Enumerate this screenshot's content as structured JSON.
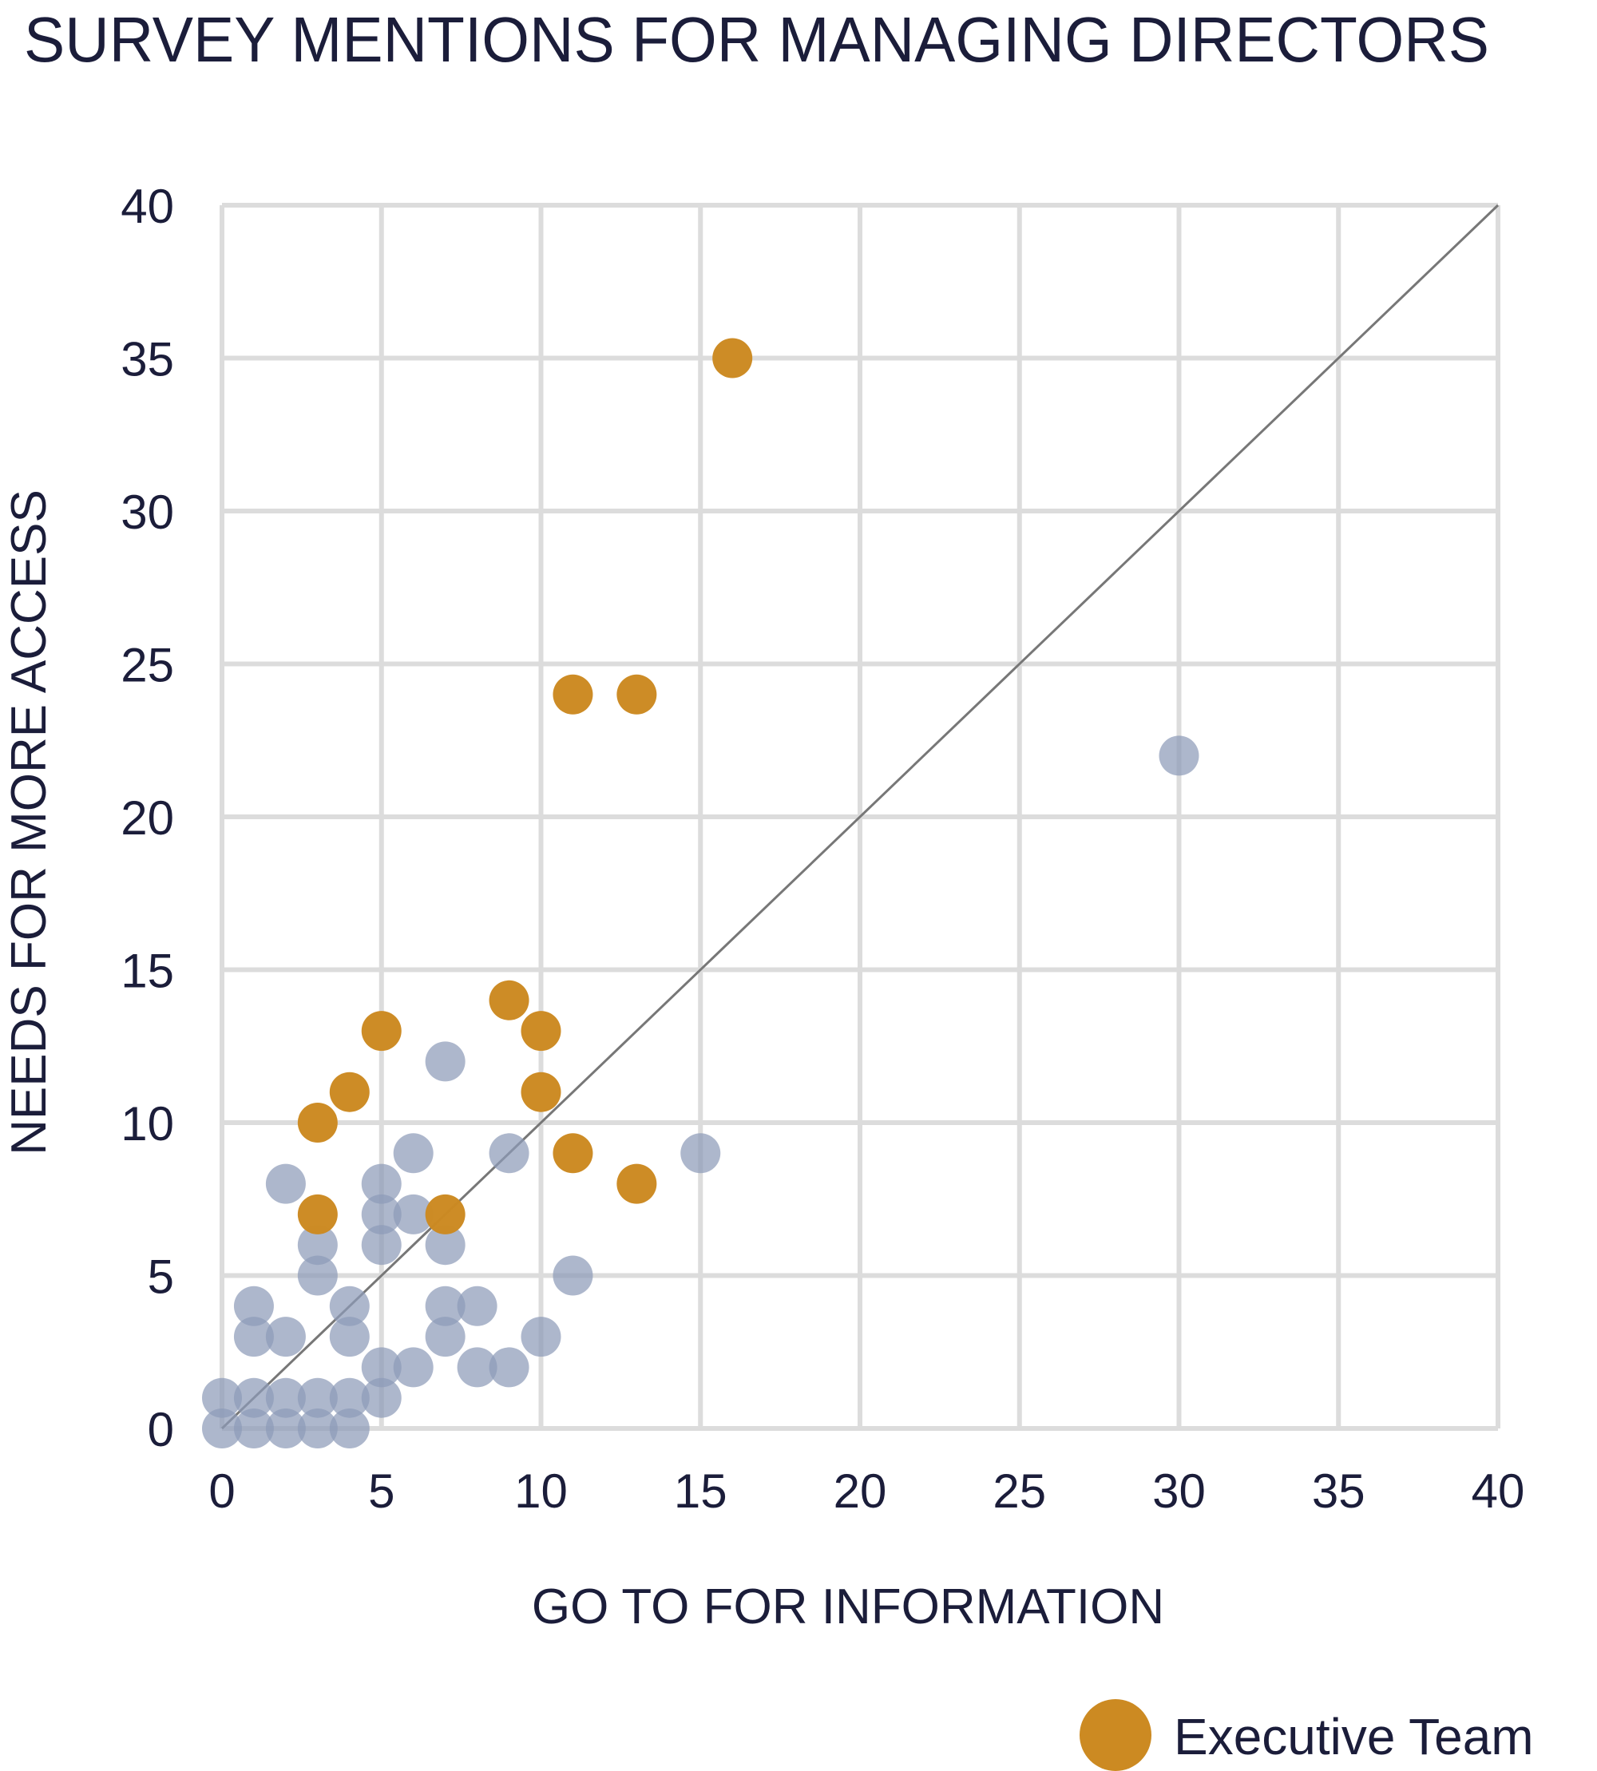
{
  "chart_data": {
    "type": "scatter",
    "title": "SURVEY MENTIONS FOR MANAGING DIRECTORS",
    "xlabel": "GO TO FOR INFORMATION",
    "ylabel": "NEEDS FOR MORE ACCESS",
    "xlim": [
      0,
      40
    ],
    "ylim": [
      0,
      40
    ],
    "xticks": [
      "0",
      "5",
      "10",
      "15",
      "20",
      "25",
      "30",
      "35",
      "40"
    ],
    "yticks": [
      "0",
      "5",
      "10",
      "15",
      "20",
      "25",
      "30",
      "35",
      "40"
    ],
    "grid": true,
    "reference_line": {
      "from": [
        0,
        0
      ],
      "to": [
        40,
        40
      ],
      "color": "#777777"
    },
    "legend_position": "bottom-right",
    "series": [
      {
        "color": "#8e9bb8",
        "points": [
          [
            0,
            1
          ],
          [
            0,
            0
          ],
          [
            1,
            1
          ],
          [
            1,
            0
          ],
          [
            2,
            1
          ],
          [
            2,
            0
          ],
          [
            3,
            1
          ],
          [
            3,
            0
          ],
          [
            4,
            1
          ],
          [
            4,
            0
          ],
          [
            5,
            1
          ],
          [
            5,
            2
          ],
          [
            6,
            2
          ],
          [
            1,
            3
          ],
          [
            1,
            4
          ],
          [
            2,
            3
          ],
          [
            3,
            5
          ],
          [
            3,
            6
          ],
          [
            4,
            4
          ],
          [
            4,
            3
          ],
          [
            2,
            8
          ],
          [
            5,
            8
          ],
          [
            5,
            7
          ],
          [
            5,
            6
          ],
          [
            6,
            7
          ],
          [
            6,
            9
          ],
          [
            7,
            6
          ],
          [
            7,
            4
          ],
          [
            7,
            3
          ],
          [
            7,
            12
          ],
          [
            8,
            4
          ],
          [
            8,
            2
          ],
          [
            9,
            2
          ],
          [
            9,
            9
          ],
          [
            10,
            3
          ],
          [
            11,
            5
          ],
          [
            15,
            9
          ],
          [
            30,
            22
          ]
        ]
      },
      {
        "name": "Executive Team",
        "color": "#cc8a22",
        "points": [
          [
            3,
            7
          ],
          [
            3,
            10
          ],
          [
            4,
            11
          ],
          [
            5,
            13
          ],
          [
            7,
            7
          ],
          [
            9,
            14
          ],
          [
            10,
            13
          ],
          [
            10,
            11
          ],
          [
            11,
            9
          ],
          [
            13,
            8
          ],
          [
            11,
            24
          ],
          [
            13,
            24
          ],
          [
            16,
            35
          ]
        ]
      }
    ]
  }
}
